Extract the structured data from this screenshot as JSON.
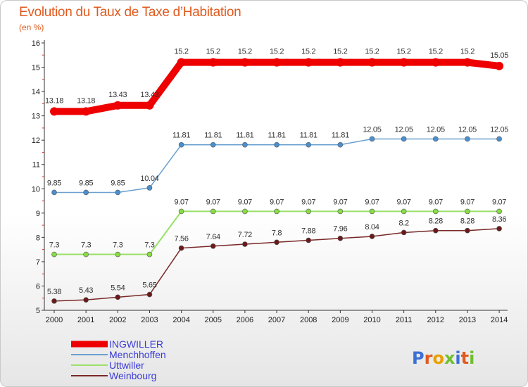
{
  "header": {
    "title": "Evolution du Taux de Taxe d’Habitation",
    "unit": "(en %)"
  },
  "logo": {
    "text": "Proxiti"
  },
  "chart_data": {
    "type": "line",
    "title": "Evolution du Taux de Taxe d’Habitation",
    "ylabel": "(en %)",
    "xlabel": "",
    "x": [
      "2000",
      "2001",
      "2002",
      "2003",
      "2004",
      "2005",
      "2006",
      "2007",
      "2008",
      "2009",
      "2010",
      "2011",
      "2012",
      "2013",
      "2014"
    ],
    "ylim": [
      5,
      16
    ],
    "yticks": [
      "5",
      "6",
      "7",
      "8",
      "9",
      "10",
      "11",
      "12",
      "13",
      "14",
      "15",
      "16"
    ],
    "grid": false,
    "legend_position": "bottom-left",
    "series": [
      {
        "name": "INGWILLER",
        "color": "#ee0000",
        "line_width": 10,
        "marker_radius": 6,
        "values": [
          13.18,
          13.18,
          13.43,
          13.43,
          15.2,
          15.2,
          15.2,
          15.2,
          15.2,
          15.2,
          15.2,
          15.2,
          15.2,
          15.2,
          15.05
        ],
        "labels": [
          "13.18",
          "13.18",
          "13.43",
          "13.43",
          "15.2",
          "15.2",
          "15.2",
          "15.2",
          "15.2",
          "15.2",
          "15.2",
          "15.2",
          "15.2",
          "15.2",
          "15.05"
        ]
      },
      {
        "name": "Menchhoffen",
        "color": "#6a9fd0",
        "marker_color": "#4a8fd0",
        "line_width": 1.5,
        "marker_radius": 3.5,
        "values": [
          9.85,
          9.85,
          9.85,
          10.04,
          11.81,
          11.81,
          11.81,
          11.81,
          11.81,
          11.81,
          12.05,
          12.05,
          12.05,
          12.05,
          12.05
        ],
        "labels": [
          "9.85",
          "9.85",
          "9.85",
          "10.04",
          "11.81",
          "11.81",
          "11.81",
          "11.81",
          "11.81",
          "11.81",
          "12.05",
          "12.05",
          "12.05",
          "12.05",
          "12.05"
        ]
      },
      {
        "name": "Uttwiller",
        "color": "#99e066",
        "marker_color": "#88dd44",
        "line_width": 2,
        "marker_radius": 3.5,
        "values": [
          7.3,
          7.3,
          7.3,
          7.3,
          9.07,
          9.07,
          9.07,
          9.07,
          9.07,
          9.07,
          9.07,
          9.07,
          9.07,
          9.07,
          9.07
        ],
        "labels": [
          "7.3",
          "7.3",
          "7.3",
          "7.3",
          "9.07",
          "9.07",
          "9.07",
          "9.07",
          "9.07",
          "9.07",
          "9.07",
          "9.07",
          "9.07",
          "9.07",
          "9.07"
        ]
      },
      {
        "name": "Weinbourg",
        "color": "#7a2828",
        "marker_color": "#6a1a1a",
        "line_width": 1.5,
        "marker_radius": 3.5,
        "values": [
          5.38,
          5.43,
          5.54,
          5.65,
          7.56,
          7.64,
          7.72,
          7.8,
          7.88,
          7.96,
          8.04,
          8.2,
          8.28,
          8.28,
          8.36
        ],
        "labels": [
          "5.38",
          "5.43",
          "5.54",
          "5.65",
          "7.56",
          "7.64",
          "7.72",
          "7.8",
          "7.88",
          "7.96",
          "8.04",
          "8.2",
          "8.28",
          "8.28",
          "8.36"
        ]
      }
    ]
  }
}
